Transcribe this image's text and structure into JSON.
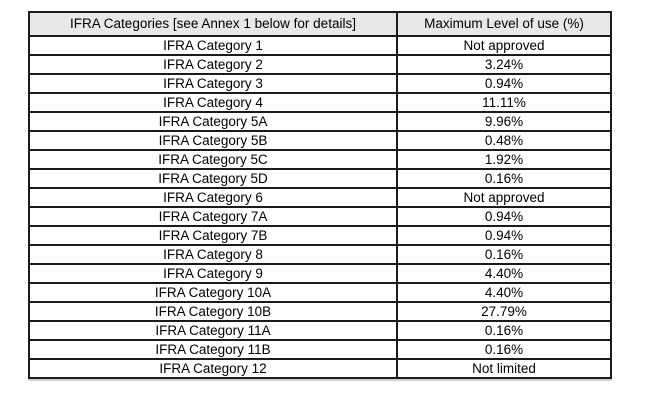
{
  "page": {
    "background": "#ffffff"
  },
  "table": {
    "border_color": "#1b1b1b",
    "header": {
      "background": "#e8e8e8",
      "category_label": "IFRA Categories [see Annex 1 below for details]",
      "max_level_label": "Maximum Level of use (%)"
    },
    "rows": [
      {
        "category": "IFRA Category 1",
        "max_level": "Not approved"
      },
      {
        "category": "IFRA Category 2",
        "max_level": "3.24%"
      },
      {
        "category": "IFRA Category 3",
        "max_level": "0.94%"
      },
      {
        "category": "IFRA Category 4",
        "max_level": "11.11%"
      },
      {
        "category": "IFRA Category 5A",
        "max_level": "9.96%"
      },
      {
        "category": "IFRA Category 5B",
        "max_level": "0.48%"
      },
      {
        "category": "IFRA Category 5C",
        "max_level": "1.92%"
      },
      {
        "category": "IFRA Category 5D",
        "max_level": "0.16%"
      },
      {
        "category": "IFRA Category 6",
        "max_level": "Not approved"
      },
      {
        "category": "IFRA Category 7A",
        "max_level": "0.94%"
      },
      {
        "category": "IFRA Category 7B",
        "max_level": "0.94%"
      },
      {
        "category": "IFRA Category 8",
        "max_level": "0.16%"
      },
      {
        "category": "IFRA Category 9",
        "max_level": "4.40%"
      },
      {
        "category": "IFRA Category 10A",
        "max_level": "4.40%"
      },
      {
        "category": "IFRA Category 10B",
        "max_level": "27.79%"
      },
      {
        "category": "IFRA Category 11A",
        "max_level": "0.16%"
      },
      {
        "category": "IFRA Category 11B",
        "max_level": "0.16%"
      },
      {
        "category": "IFRA Category 12",
        "max_level": "Not limited"
      }
    ]
  }
}
